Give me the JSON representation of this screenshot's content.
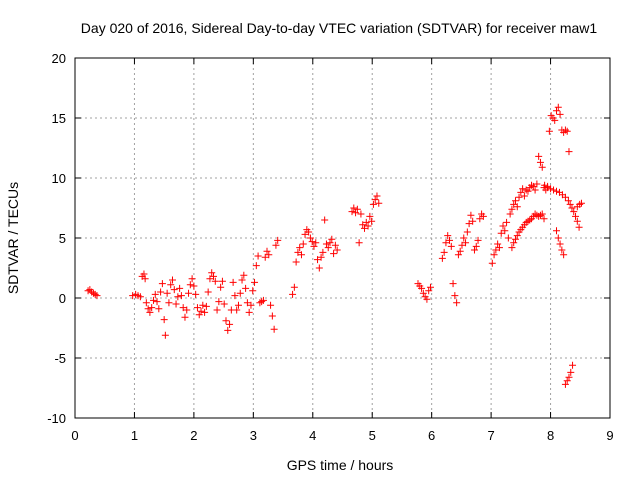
{
  "chart_data": {
    "type": "scatter",
    "title": "Day 020 of 2016, Sidereal Day-to-day VTEC variation (SDTVAR) for receiver maw1",
    "xlabel": "GPS time / hours",
    "ylabel": "SDTVAR / TECUs",
    "xlim": [
      0,
      9
    ],
    "ylim": [
      -10,
      20
    ],
    "xticks": [
      0,
      1,
      2,
      3,
      4,
      5,
      6,
      7,
      8,
      9
    ],
    "yticks": [
      -10,
      -5,
      0,
      5,
      10,
      15,
      20
    ],
    "grid": true,
    "marker": "+",
    "color": "#ff0000",
    "series": [
      {
        "name": "maw1",
        "points": [
          [
            0.22,
            0.6
          ],
          [
            0.25,
            0.7
          ],
          [
            0.28,
            0.5
          ],
          [
            0.31,
            0.4
          ],
          [
            0.34,
            0.3
          ],
          [
            0.37,
            0.2
          ],
          [
            0.97,
            0.2
          ],
          [
            1.02,
            0.3
          ],
          [
            1.06,
            0.2
          ],
          [
            1.1,
            0.1
          ],
          [
            1.13,
            1.8
          ],
          [
            1.16,
            2.0
          ],
          [
            1.18,
            1.6
          ],
          [
            1.2,
            -0.4
          ],
          [
            1.23,
            -0.9
          ],
          [
            1.26,
            -1.2
          ],
          [
            1.29,
            -0.8
          ],
          [
            1.32,
            -0.2
          ],
          [
            1.35,
            0.3
          ],
          [
            1.38,
            -0.3
          ],
          [
            1.41,
            -0.9
          ],
          [
            1.44,
            0.5
          ],
          [
            1.47,
            1.2
          ],
          [
            1.5,
            -1.8
          ],
          [
            1.52,
            -3.1
          ],
          [
            1.55,
            0.4
          ],
          [
            1.58,
            -0.4
          ],
          [
            1.61,
            1.1
          ],
          [
            1.64,
            1.5
          ],
          [
            1.67,
            0.7
          ],
          [
            1.7,
            -0.5
          ],
          [
            1.73,
            0.1
          ],
          [
            1.76,
            0.8
          ],
          [
            1.79,
            0.2
          ],
          [
            1.82,
            -0.8
          ],
          [
            1.85,
            -1.6
          ],
          [
            1.88,
            -1.0
          ],
          [
            1.91,
            0.4
          ],
          [
            1.94,
            1.1
          ],
          [
            1.97,
            1.6
          ],
          [
            2.0,
            1.0
          ],
          [
            2.03,
            0.3
          ],
          [
            2.06,
            -0.8
          ],
          [
            2.09,
            -1.4
          ],
          [
            2.12,
            -1.1
          ],
          [
            2.15,
            -0.6
          ],
          [
            2.18,
            -1.2
          ],
          [
            2.21,
            -0.7
          ],
          [
            2.24,
            0.5
          ],
          [
            2.27,
            1.6
          ],
          [
            2.3,
            2.1
          ],
          [
            2.33,
            1.8
          ],
          [
            2.36,
            1.4
          ],
          [
            2.39,
            -1.0
          ],
          [
            2.42,
            -0.3
          ],
          [
            2.45,
            0.9
          ],
          [
            2.48,
            1.4
          ],
          [
            2.51,
            -0.5
          ],
          [
            2.54,
            -1.9
          ],
          [
            2.57,
            -2.7
          ],
          [
            2.6,
            -2.2
          ],
          [
            2.63,
            -1.0
          ],
          [
            2.66,
            1.3
          ],
          [
            2.69,
            0.2
          ],
          [
            2.72,
            -1.0
          ],
          [
            2.75,
            -0.6
          ],
          [
            2.78,
            0.4
          ],
          [
            2.81,
            1.5
          ],
          [
            2.84,
            1.9
          ],
          [
            2.87,
            0.8
          ],
          [
            2.9,
            -0.4
          ],
          [
            2.93,
            -1.2
          ],
          [
            2.96,
            -0.6
          ],
          [
            2.99,
            0.6
          ],
          [
            3.02,
            1.3
          ],
          [
            3.05,
            2.7
          ],
          [
            3.08,
            3.5
          ],
          [
            3.11,
            -0.4
          ],
          [
            3.14,
            -0.3
          ],
          [
            3.17,
            -0.2
          ],
          [
            3.2,
            3.4
          ],
          [
            3.23,
            3.9
          ],
          [
            3.26,
            3.6
          ],
          [
            3.29,
            -0.6
          ],
          [
            3.32,
            -1.5
          ],
          [
            3.35,
            -2.6
          ],
          [
            3.38,
            4.4
          ],
          [
            3.41,
            4.8
          ],
          [
            3.66,
            0.3
          ],
          [
            3.69,
            0.9
          ],
          [
            3.72,
            3.0
          ],
          [
            3.75,
            3.8
          ],
          [
            3.78,
            4.2
          ],
          [
            3.81,
            3.6
          ],
          [
            3.84,
            4.5
          ],
          [
            3.87,
            5.3
          ],
          [
            3.9,
            5.7
          ],
          [
            3.93,
            5.5
          ],
          [
            3.96,
            5.0
          ],
          [
            3.99,
            4.7
          ],
          [
            4.02,
            4.3
          ],
          [
            4.05,
            4.6
          ],
          [
            4.08,
            3.2
          ],
          [
            4.11,
            2.5
          ],
          [
            4.14,
            3.4
          ],
          [
            4.17,
            3.8
          ],
          [
            4.2,
            6.5
          ],
          [
            4.23,
            4.5
          ],
          [
            4.26,
            4.2
          ],
          [
            4.29,
            4.6
          ],
          [
            4.32,
            4.9
          ],
          [
            4.35,
            3.7
          ],
          [
            4.38,
            4.4
          ],
          [
            4.41,
            4.0
          ],
          [
            4.66,
            7.2
          ],
          [
            4.69,
            7.5
          ],
          [
            4.72,
            7.1
          ],
          [
            4.75,
            7.4
          ],
          [
            4.78,
            4.6
          ],
          [
            4.81,
            7.0
          ],
          [
            4.84,
            6.1
          ],
          [
            4.87,
            5.8
          ],
          [
            4.9,
            6.3
          ],
          [
            4.93,
            6.0
          ],
          [
            4.96,
            6.8
          ],
          [
            4.99,
            6.4
          ],
          [
            5.02,
            7.8
          ],
          [
            5.05,
            8.2
          ],
          [
            5.08,
            8.5
          ],
          [
            5.11,
            7.9
          ],
          [
            5.77,
            1.2
          ],
          [
            5.8,
            1.0
          ],
          [
            5.83,
            0.8
          ],
          [
            5.86,
            0.4
          ],
          [
            5.89,
            0.1
          ],
          [
            5.92,
            -0.1
          ],
          [
            5.95,
            0.6
          ],
          [
            5.98,
            0.9
          ],
          [
            6.18,
            3.3
          ],
          [
            6.21,
            3.8
          ],
          [
            6.24,
            4.6
          ],
          [
            6.27,
            5.2
          ],
          [
            6.3,
            4.8
          ],
          [
            6.33,
            4.3
          ],
          [
            6.36,
            1.2
          ],
          [
            6.39,
            0.2
          ],
          [
            6.42,
            -0.4
          ],
          [
            6.45,
            3.6
          ],
          [
            6.48,
            3.9
          ],
          [
            6.51,
            4.4
          ],
          [
            6.54,
            5.0
          ],
          [
            6.57,
            4.6
          ],
          [
            6.6,
            5.5
          ],
          [
            6.63,
            6.2
          ],
          [
            6.66,
            6.9
          ],
          [
            6.69,
            6.4
          ],
          [
            6.72,
            4.0
          ],
          [
            6.75,
            4.3
          ],
          [
            6.78,
            4.8
          ],
          [
            6.81,
            6.6
          ],
          [
            6.84,
            7.0
          ],
          [
            6.87,
            6.8
          ],
          [
            7.02,
            2.9
          ],
          [
            7.05,
            3.6
          ],
          [
            7.08,
            4.0
          ],
          [
            7.11,
            4.5
          ],
          [
            7.14,
            4.2
          ],
          [
            7.17,
            5.4
          ],
          [
            7.2,
            6.0
          ],
          [
            7.23,
            5.6
          ],
          [
            7.26,
            6.3
          ],
          [
            7.29,
            5.0
          ],
          [
            7.32,
            7.0
          ],
          [
            7.35,
            7.4
          ],
          [
            7.38,
            7.8
          ],
          [
            7.41,
            8.1
          ],
          [
            7.44,
            7.6
          ],
          [
            7.47,
            8.4
          ],
          [
            7.5,
            8.8
          ],
          [
            7.53,
            9.1
          ],
          [
            7.56,
            8.5
          ],
          [
            7.59,
            9.0
          ],
          [
            7.62,
            8.9
          ],
          [
            7.65,
            9.2
          ],
          [
            7.68,
            9.4
          ],
          [
            7.71,
            9.3
          ],
          [
            7.74,
            9.0
          ],
          [
            7.77,
            9.5
          ],
          [
            7.8,
            11.8
          ],
          [
            7.83,
            11.3
          ],
          [
            7.86,
            10.9
          ],
          [
            7.89,
            9.2
          ],
          [
            7.92,
            9.0
          ],
          [
            7.95,
            9.3
          ],
          [
            7.98,
            13.9
          ],
          [
            8.01,
            15.2
          ],
          [
            8.04,
            15.0
          ],
          [
            8.07,
            14.8
          ],
          [
            8.1,
            15.6
          ],
          [
            8.13,
            15.9
          ],
          [
            8.16,
            15.3
          ],
          [
            8.19,
            14.0
          ],
          [
            8.22,
            13.8
          ],
          [
            8.25,
            14.0
          ],
          [
            8.28,
            13.9
          ],
          [
            8.31,
            12.2
          ],
          [
            7.35,
            4.2
          ],
          [
            7.38,
            4.6
          ],
          [
            7.41,
            4.9
          ],
          [
            7.44,
            5.2
          ],
          [
            7.47,
            5.5
          ],
          [
            7.5,
            5.7
          ],
          [
            7.53,
            5.9
          ],
          [
            7.56,
            6.1
          ],
          [
            7.59,
            6.3
          ],
          [
            7.62,
            6.4
          ],
          [
            7.65,
            6.5
          ],
          [
            7.68,
            6.6
          ],
          [
            7.71,
            6.8
          ],
          [
            7.74,
            7.0
          ],
          [
            7.77,
            6.9
          ],
          [
            7.8,
            6.8
          ],
          [
            7.83,
            6.9
          ],
          [
            7.86,
            7.0
          ],
          [
            7.89,
            6.6
          ],
          [
            7.9,
            9.4
          ],
          [
            7.95,
            9.2
          ],
          [
            8.0,
            9.1
          ],
          [
            8.05,
            9.0
          ],
          [
            8.1,
            8.9
          ],
          [
            8.15,
            8.8
          ],
          [
            8.2,
            8.6
          ],
          [
            8.25,
            8.4
          ],
          [
            8.3,
            8.1
          ],
          [
            8.33,
            7.8
          ],
          [
            8.36,
            7.5
          ],
          [
            8.39,
            7.2
          ],
          [
            8.42,
            6.8
          ],
          [
            8.45,
            6.4
          ],
          [
            8.48,
            5.9
          ],
          [
            8.45,
            7.6
          ],
          [
            8.49,
            7.8
          ],
          [
            8.52,
            7.9
          ],
          [
            8.1,
            5.6
          ],
          [
            8.13,
            5.0
          ],
          [
            8.16,
            4.5
          ],
          [
            8.19,
            4.0
          ],
          [
            8.22,
            3.6
          ],
          [
            8.25,
            -7.2
          ],
          [
            8.28,
            -6.9
          ],
          [
            8.31,
            -6.6
          ],
          [
            8.34,
            -6.2
          ],
          [
            8.37,
            -5.6
          ]
        ]
      }
    ]
  }
}
